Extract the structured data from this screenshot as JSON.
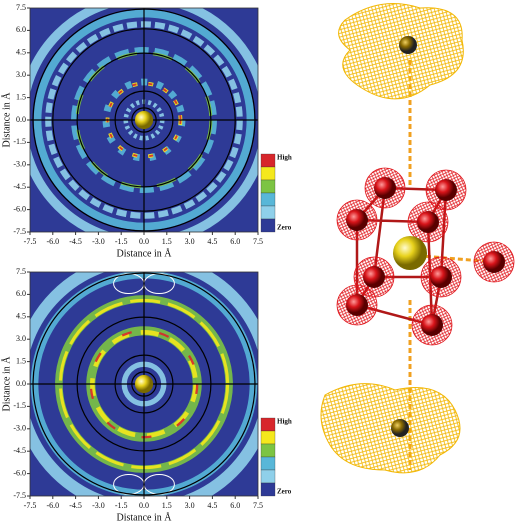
{
  "chart_data": [
    {
      "type": "density-map",
      "x_label": "Distance in Å",
      "y_label": "Distance in Å",
      "xlim": [
        -7.5,
        7.5
      ],
      "ylim": [
        -7.5,
        7.5
      ],
      "xticks": [
        -7.5,
        {
          "value": -6,
          "label": "-6.0"
        },
        -4.5,
        {
          "value": -3,
          "label": "-3.0"
        },
        -1.5,
        {
          "value": 0,
          "label": "0.0"
        },
        1.5,
        {
          "value": 3,
          "label": "3.0"
        },
        4.5,
        {
          "value": 6,
          "label": "6.0"
        },
        7.5
      ],
      "yticks": [
        -7.5,
        {
          "value": -6,
          "label": "-6.0"
        },
        -4.5,
        {
          "value": -3,
          "label": "-3.0"
        },
        -1.5,
        {
          "value": 0,
          "label": "0.0"
        },
        1.5,
        {
          "value": 3,
          "label": "3.0"
        },
        4.5,
        {
          "value": 6,
          "label": "6.0"
        },
        7.5
      ],
      "colorbar": {
        "colors": [
          "#d7262b",
          "#f4e81c",
          "#7cc443",
          "#58b7d8",
          "#8fd0ea",
          "#2e3a96"
        ],
        "high_label": "High",
        "zero_label": "Zero"
      }
    },
    {
      "type": "density-map",
      "x_label": "Distance in Å",
      "y_label": "Distance in Å",
      "xlim": [
        -7.5,
        7.5
      ],
      "ylim": [
        -7.5,
        7.5
      ],
      "xticks": [
        -7.5,
        {
          "value": -6,
          "label": "-6.0"
        },
        -4.5,
        {
          "value": -3,
          "label": "-3.0"
        },
        -1.5,
        {
          "value": 0,
          "label": "0.0"
        },
        1.5,
        {
          "value": 3,
          "label": "3.0"
        },
        4.5,
        {
          "value": 6,
          "label": "6.0"
        },
        7.5
      ],
      "yticks": [
        -7.5,
        {
          "value": -6,
          "label": "-6.0"
        },
        -4.5,
        {
          "value": -3,
          "label": "-3.0"
        },
        -1.5,
        {
          "value": 0,
          "label": "0.0"
        },
        1.5,
        {
          "value": 3,
          "label": "3.0"
        },
        4.5,
        {
          "value": 6,
          "label": "6.0"
        },
        7.5
      ],
      "colorbar": {
        "colors": [
          "#d7262b",
          "#f4e81c",
          "#7cc443",
          "#58b7d8",
          "#8fd0ea",
          "#2e3a96"
        ],
        "high_label": "High",
        "zero_label": "Zero"
      }
    }
  ]
}
